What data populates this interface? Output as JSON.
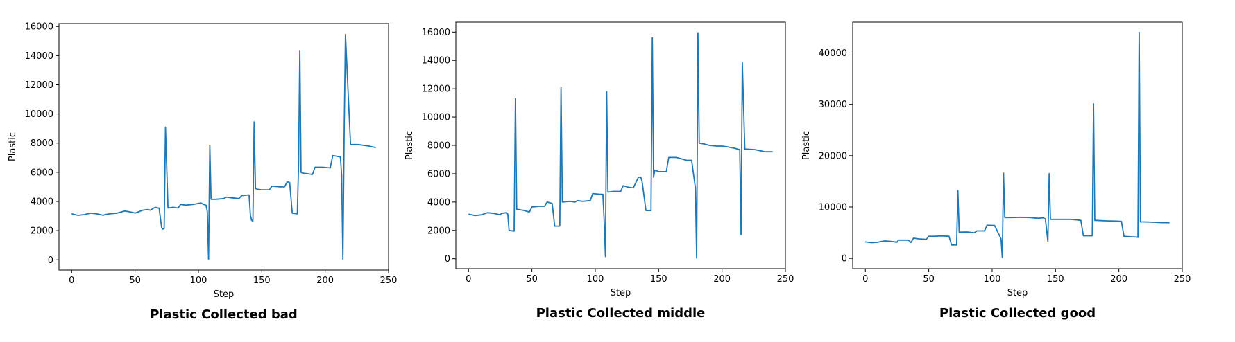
{
  "chart_data": [
    {
      "type": "line",
      "title": "Plastic Collected bad",
      "xlabel": "Step",
      "ylabel": "Plastic",
      "xlim": [
        -10,
        250
      ],
      "ylim": [
        -700,
        16200
      ],
      "xticks": [
        0,
        50,
        100,
        150,
        200,
        250
      ],
      "yticks": [
        0,
        2000,
        4000,
        6000,
        8000,
        10000,
        12000,
        14000,
        16000
      ],
      "grid": false,
      "color": "#1f77b4",
      "series": [
        {
          "x": [
            0,
            5,
            10,
            15,
            20,
            25,
            26,
            30,
            36,
            42,
            48,
            50,
            56,
            60,
            62,
            66,
            68,
            69,
            71,
            72,
            73,
            74,
            76,
            80,
            84,
            86,
            90,
            96,
            102,
            104,
            106,
            107,
            108,
            109,
            110,
            114,
            120,
            122,
            126,
            132,
            134,
            140,
            141,
            142,
            143,
            144,
            145,
            146,
            150,
            156,
            158,
            164,
            168,
            170,
            172,
            174,
            178,
            179,
            180,
            181,
            182,
            190,
            192,
            198,
            204,
            206,
            212,
            213,
            214,
            215,
            216,
            220,
            226,
            234,
            240
          ],
          "values": [
            3150,
            3050,
            3100,
            3200,
            3150,
            3050,
            3100,
            3150,
            3200,
            3350,
            3250,
            3200,
            3400,
            3450,
            3400,
            3600,
            3550,
            3550,
            2200,
            2100,
            2150,
            9100,
            3550,
            3600,
            3550,
            3800,
            3750,
            3800,
            3900,
            3800,
            3750,
            3300,
            50,
            7850,
            4150,
            4150,
            4200,
            4300,
            4250,
            4200,
            4400,
            4450,
            3050,
            2700,
            2650,
            9450,
            4900,
            4850,
            4800,
            4800,
            5050,
            5000,
            5000,
            5350,
            5300,
            3200,
            3150,
            6500,
            14350,
            6000,
            5950,
            5850,
            6350,
            6350,
            6300,
            7150,
            7050,
            5800,
            50,
            9000,
            15450,
            7900,
            7900,
            7800,
            7700
          ]
        }
      ]
    },
    {
      "type": "line",
      "title": "Plastic Collected middle",
      "xlabel": "Step",
      "ylabel": "Plastic",
      "xlim": [
        -10,
        250
      ],
      "ylim": [
        -700,
        16700
      ],
      "xticks": [
        0,
        50,
        100,
        150,
        200,
        250
      ],
      "yticks": [
        0,
        2000,
        4000,
        6000,
        8000,
        10000,
        12000,
        14000,
        16000
      ],
      "grid": false,
      "color": "#1f77b4",
      "series": [
        {
          "x": [
            0,
            5,
            10,
            15,
            20,
            25,
            26,
            30,
            31,
            32,
            36,
            37,
            38,
            44,
            48,
            50,
            56,
            60,
            62,
            66,
            68,
            72,
            73,
            74,
            80,
            84,
            86,
            90,
            96,
            98,
            104,
            106,
            107,
            108,
            109,
            110,
            114,
            120,
            122,
            126,
            130,
            134,
            136,
            137,
            140,
            144,
            145,
            146,
            147,
            150,
            156,
            158,
            164,
            168,
            172,
            176,
            179,
            180,
            181,
            182,
            186,
            190,
            196,
            200,
            204,
            210,
            214,
            215,
            216,
            218,
            226,
            234,
            240
          ],
          "values": [
            3150,
            3050,
            3100,
            3250,
            3200,
            3100,
            3200,
            3250,
            3150,
            2000,
            1950,
            11300,
            3500,
            3400,
            3300,
            3650,
            3700,
            3700,
            4000,
            3900,
            2300,
            2300,
            12100,
            4000,
            4050,
            4000,
            4100,
            4050,
            4100,
            4600,
            4550,
            4550,
            2700,
            150,
            11800,
            4700,
            4750,
            4750,
            5150,
            5050,
            5000,
            5750,
            5750,
            5400,
            3400,
            3400,
            15600,
            5750,
            6250,
            6150,
            6150,
            7150,
            7150,
            7050,
            6950,
            6950,
            5000,
            50,
            15950,
            8150,
            8100,
            8000,
            7950,
            7950,
            7900,
            7800,
            7700,
            1700,
            13850,
            7750,
            7700,
            7550,
            7550
          ]
        }
      ]
    },
    {
      "type": "line",
      "title": "Plastic Collected good",
      "xlabel": "Step",
      "ylabel": "Plastic",
      "xlim": [
        -10,
        250
      ],
      "ylim": [
        -2000,
        46000
      ],
      "xticks": [
        0,
        50,
        100,
        150,
        200,
        250
      ],
      "yticks": [
        0,
        10000,
        20000,
        30000,
        40000
      ],
      "grid": false,
      "color": "#1f77b4",
      "series": [
        {
          "x": [
            0,
            5,
            10,
            15,
            20,
            25,
            26,
            30,
            34,
            36,
            38,
            42,
            48,
            50,
            54,
            58,
            62,
            66,
            68,
            72,
            73,
            74,
            80,
            86,
            88,
            94,
            96,
            102,
            107,
            108,
            109,
            110,
            116,
            122,
            130,
            136,
            140,
            142,
            143,
            144,
            145,
            146,
            150,
            156,
            162,
            166,
            170,
            172,
            176,
            179,
            180,
            181,
            182,
            186,
            190,
            198,
            202,
            204,
            210,
            214,
            215,
            216,
            217,
            220,
            226,
            234,
            240
          ],
          "values": [
            3200,
            3050,
            3150,
            3400,
            3300,
            3150,
            3550,
            3550,
            3550,
            3100,
            3950,
            3800,
            3700,
            4300,
            4300,
            4350,
            4350,
            4300,
            2600,
            2600,
            13200,
            5100,
            5150,
            5000,
            5350,
            5350,
            6450,
            6400,
            3800,
            200,
            16600,
            7950,
            7950,
            8000,
            7950,
            7800,
            7900,
            7700,
            5500,
            3300,
            16500,
            7600,
            7600,
            7600,
            7600,
            7500,
            7400,
            4400,
            4400,
            4400,
            30100,
            7400,
            7400,
            7350,
            7300,
            7250,
            7200,
            4300,
            4200,
            4150,
            4100,
            44000,
            7100,
            7100,
            7050,
            6950,
            6950
          ]
        }
      ]
    }
  ]
}
